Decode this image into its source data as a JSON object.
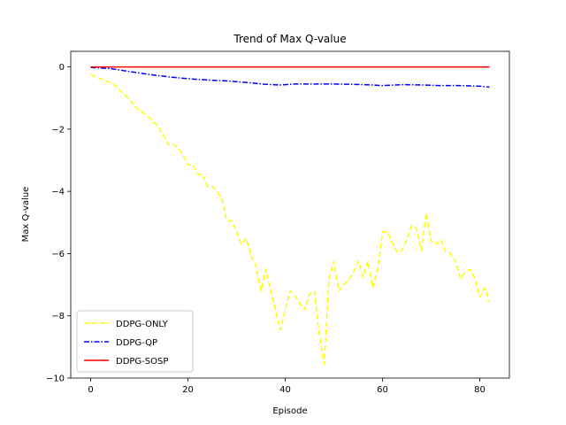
{
  "chart_data": {
    "type": "line",
    "title": "Trend of Max Q-value",
    "xlabel": "Episode",
    "ylabel": "Max Q-value",
    "xlim": [
      -4.1,
      86.1
    ],
    "ylim": [
      -10,
      0.5
    ],
    "xticks": [
      0,
      20,
      40,
      60,
      80
    ],
    "yticks": [
      0,
      -2,
      -4,
      -6,
      -8,
      -10
    ],
    "xtick_labels": [
      "0",
      "20",
      "40",
      "60",
      "80"
    ],
    "ytick_labels": [
      "0",
      "−2",
      "−4",
      "−6",
      "−8",
      "−10"
    ],
    "grid": false,
    "legend_position": "lower-left",
    "series": [
      {
        "name": "DDPG-ONLY",
        "color": "#ffff00",
        "dash": "dashed",
        "x": [
          0,
          1,
          2,
          3,
          4,
          5,
          6,
          7,
          8,
          9,
          10,
          11,
          12,
          13,
          14,
          15,
          16,
          17,
          18,
          19,
          20,
          21,
          22,
          23,
          24,
          25,
          26,
          27,
          28,
          29,
          30,
          31,
          32,
          33,
          34,
          35,
          36,
          37,
          38,
          39,
          40,
          41,
          42,
          43,
          44,
          45,
          46,
          47,
          48,
          49,
          50,
          51,
          52,
          53,
          54,
          55,
          56,
          57,
          58,
          59,
          60,
          61,
          62,
          63,
          64,
          65,
          66,
          67,
          68,
          69,
          70,
          71,
          72,
          73,
          74,
          75,
          76,
          77,
          78,
          79,
          80,
          81,
          82
        ],
        "values": [
          -0.25,
          -0.32,
          -0.38,
          -0.45,
          -0.5,
          -0.6,
          -0.75,
          -0.9,
          -1.05,
          -1.25,
          -1.4,
          -1.5,
          -1.62,
          -1.78,
          -1.95,
          -2.2,
          -2.5,
          -2.5,
          -2.6,
          -2.85,
          -3.15,
          -3.15,
          -3.45,
          -3.45,
          -3.85,
          -3.85,
          -4.0,
          -4.25,
          -4.95,
          -4.95,
          -5.3,
          -5.7,
          -5.5,
          -6.1,
          -6.4,
          -7.2,
          -6.5,
          -7.2,
          -7.8,
          -8.45,
          -7.8,
          -7.2,
          -7.35,
          -7.6,
          -7.8,
          -7.3,
          -7.2,
          -8.6,
          -9.55,
          -6.8,
          -6.25,
          -7.2,
          -7.0,
          -6.85,
          -6.6,
          -6.25,
          -6.75,
          -6.25,
          -7.1,
          -6.5,
          -5.3,
          -5.3,
          -5.65,
          -5.95,
          -5.9,
          -5.55,
          -5.1,
          -5.2,
          -5.9,
          -4.7,
          -5.6,
          -5.7,
          -5.55,
          -5.95,
          -6.0,
          -6.25,
          -6.8,
          -6.6,
          -6.5,
          -6.8,
          -7.4,
          -7.1,
          -7.55
        ]
      },
      {
        "name": "DDPG-QP",
        "color": "#0000ff",
        "dash": "dashdot",
        "x": [
          0,
          4,
          8,
          12,
          16,
          20,
          24,
          28,
          32,
          36,
          39,
          42,
          46,
          50,
          54,
          58,
          60,
          64,
          68,
          72,
          76,
          80,
          82
        ],
        "values": [
          -0.02,
          -0.05,
          -0.15,
          -0.24,
          -0.32,
          -0.38,
          -0.42,
          -0.45,
          -0.5,
          -0.56,
          -0.58,
          -0.55,
          -0.55,
          -0.55,
          -0.56,
          -0.58,
          -0.6,
          -0.57,
          -0.58,
          -0.6,
          -0.6,
          -0.62,
          -0.65
        ]
      },
      {
        "name": "DDPG-SOSP",
        "color": "#ff0000",
        "dash": "solid",
        "x": [
          0,
          82
        ],
        "values": [
          0.0,
          0.0
        ]
      }
    ]
  }
}
